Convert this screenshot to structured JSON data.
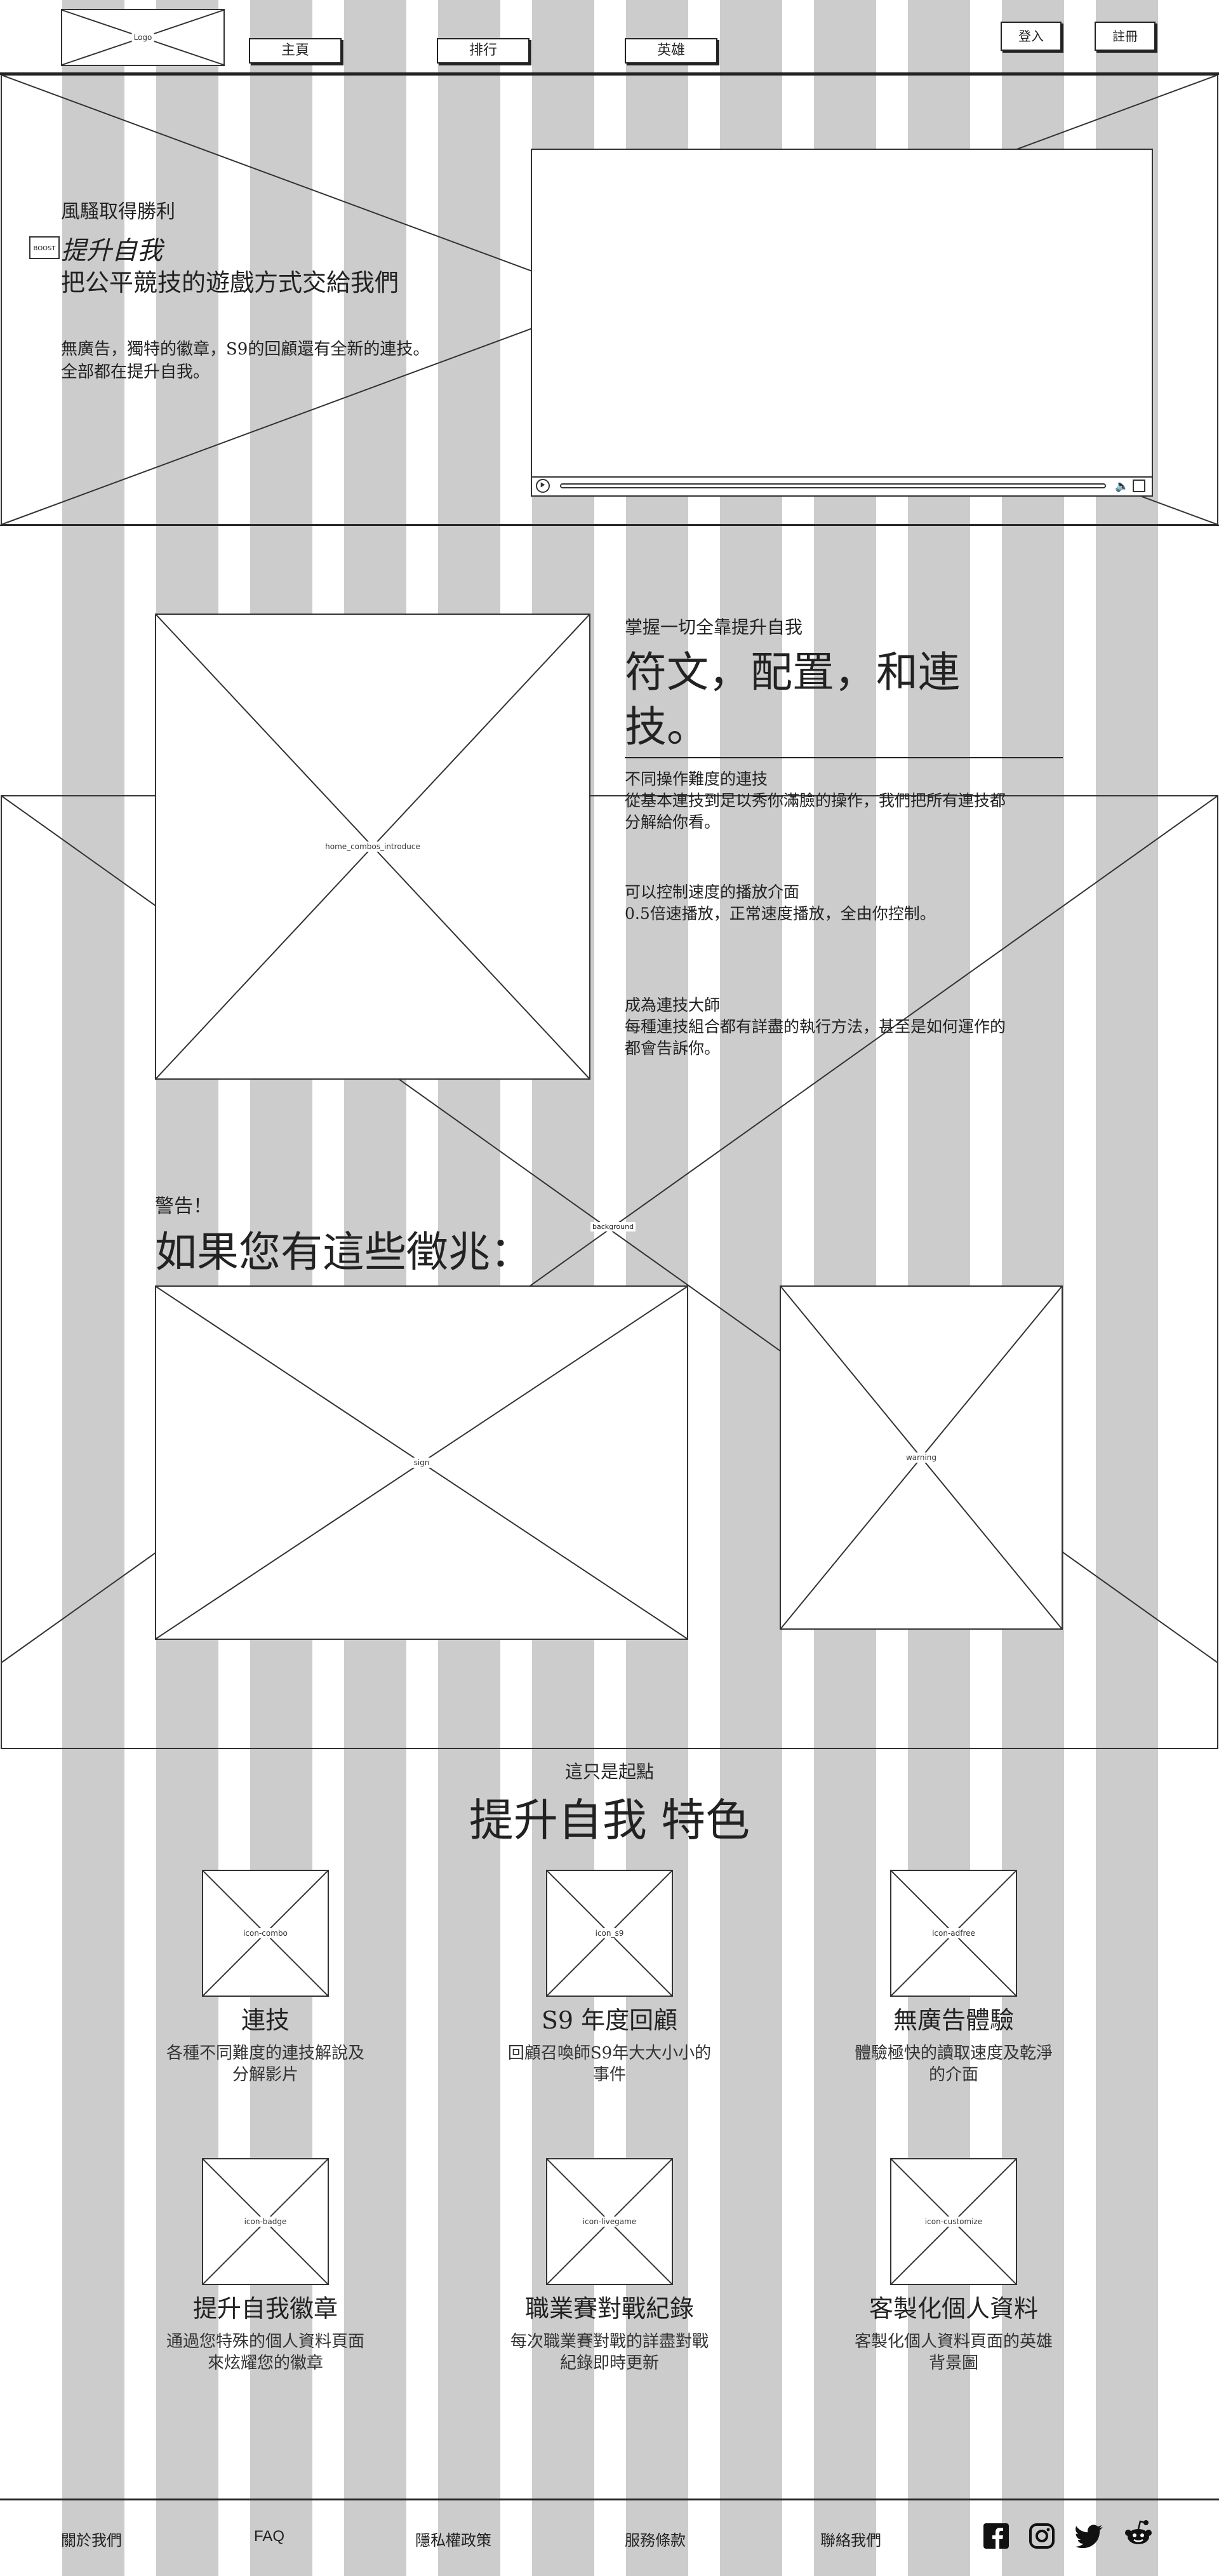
{
  "header": {
    "logo": "Logo",
    "nav": [
      "主頁",
      "排行",
      "英雄"
    ],
    "login": "登入",
    "register": "註冊"
  },
  "hero": {
    "eyebrow": "風騷取得勝利",
    "boost_badge": "BOOST",
    "brand_italic": "提升自我",
    "headline": "把公平競技的遊戲方式交給我們",
    "desc_line1": "無廣告，獨特的徽章，S9的回顧還有全新的連技。",
    "desc_line2": "全部都在提升自我。"
  },
  "combos": {
    "image_label": "home_combos_introduce",
    "eyebrow": "掌握一切全靠提升自我",
    "title_line1": "符文，配置，和連",
    "title_line2": "技。",
    "items": [
      {
        "title": "不同操作難度的連技",
        "desc1": "從基本連技到足以秀你滿臉的操作，我們把所有連技都",
        "desc2": "分解給你看。"
      },
      {
        "title": "可以控制速度的播放介面",
        "desc1": "0.5倍速播放，正常速度播放，全由你控制。",
        "desc2": ""
      },
      {
        "title": "成為連技大師",
        "desc1": "每種連技組合都有詳盡的執行方法，甚至是如何運作的",
        "desc2": "都會告訴你。"
      }
    ]
  },
  "warning": {
    "eyebrow": "警告！",
    "title": "如果您有這些徵兆：",
    "bg_label": "background",
    "sign_label": "sign",
    "warning_label": "warning"
  },
  "features": {
    "eyebrow": "這只是起點",
    "title": "提升自我 特色",
    "items": [
      {
        "icon": "icon-combo",
        "title": "連技",
        "desc1": "各種不同難度的連技解說及",
        "desc2": "分解影片"
      },
      {
        "icon": "icon_s9",
        "title": "S9 年度回顧",
        "desc1": "回顧召喚師S9年大大小小的",
        "desc2": "事件"
      },
      {
        "icon": "icon-adfree",
        "title": "無廣告體驗",
        "desc1": "體驗極快的讀取速度及乾淨",
        "desc2": "的介面"
      },
      {
        "icon": "icon-badge",
        "title": "提升自我徽章",
        "desc1": "通過您特殊的個人資料頁面",
        "desc2": "來炫耀您的徽章"
      },
      {
        "icon": "icon-livegame",
        "title": "職業賽對戰紀錄",
        "desc1": "每次職業賽對戰的詳盡對戰",
        "desc2": "紀錄即時更新"
      },
      {
        "icon": "icon-customize",
        "title": "客製化個人資料",
        "desc1": "客製化個人資料頁面的英雄",
        "desc2": "背景圖"
      }
    ]
  },
  "footer": {
    "links": [
      "關於我們",
      "FAQ",
      "隱私權政策",
      "服務條款",
      "聯絡我們"
    ],
    "social": [
      "facebook-icon",
      "instagram-icon",
      "twitter-icon",
      "reddit-icon"
    ]
  }
}
